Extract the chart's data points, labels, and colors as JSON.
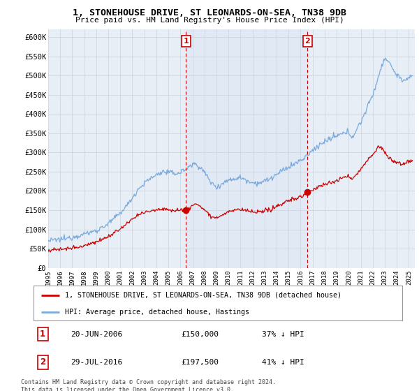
{
  "title": "1, STONEHOUSE DRIVE, ST LEONARDS-ON-SEA, TN38 9DB",
  "subtitle": "Price paid vs. HM Land Registry's House Price Index (HPI)",
  "ylabel_ticks": [
    "£0",
    "£50K",
    "£100K",
    "£150K",
    "£200K",
    "£250K",
    "£300K",
    "£350K",
    "£400K",
    "£450K",
    "£500K",
    "£550K",
    "£600K"
  ],
  "ylim": [
    0,
    620000
  ],
  "xlim_start": 1995.0,
  "xlim_end": 2025.5,
  "sale1_x": 2006.47,
  "sale1_y": 150000,
  "sale1_label": "20-JUN-2006",
  "sale1_price": "£150,000",
  "sale1_pct": "37% ↓ HPI",
  "sale2_x": 2016.58,
  "sale2_y": 197500,
  "sale2_label": "29-JUL-2016",
  "sale2_price": "£197,500",
  "sale2_pct": "41% ↓ HPI",
  "legend_line1": "1, STONEHOUSE DRIVE, ST LEONARDS-ON-SEA, TN38 9DB (detached house)",
  "legend_line2": "HPI: Average price, detached house, Hastings",
  "footnote": "Contains HM Land Registry data © Crown copyright and database right 2024.\nThis data is licensed under the Open Government Licence v3.0.",
  "red_color": "#cc0000",
  "blue_color": "#7aaadd",
  "shade_color": "#dde8f4",
  "bg_color": "#e8eef5",
  "grid_color": "#c8d4e0"
}
